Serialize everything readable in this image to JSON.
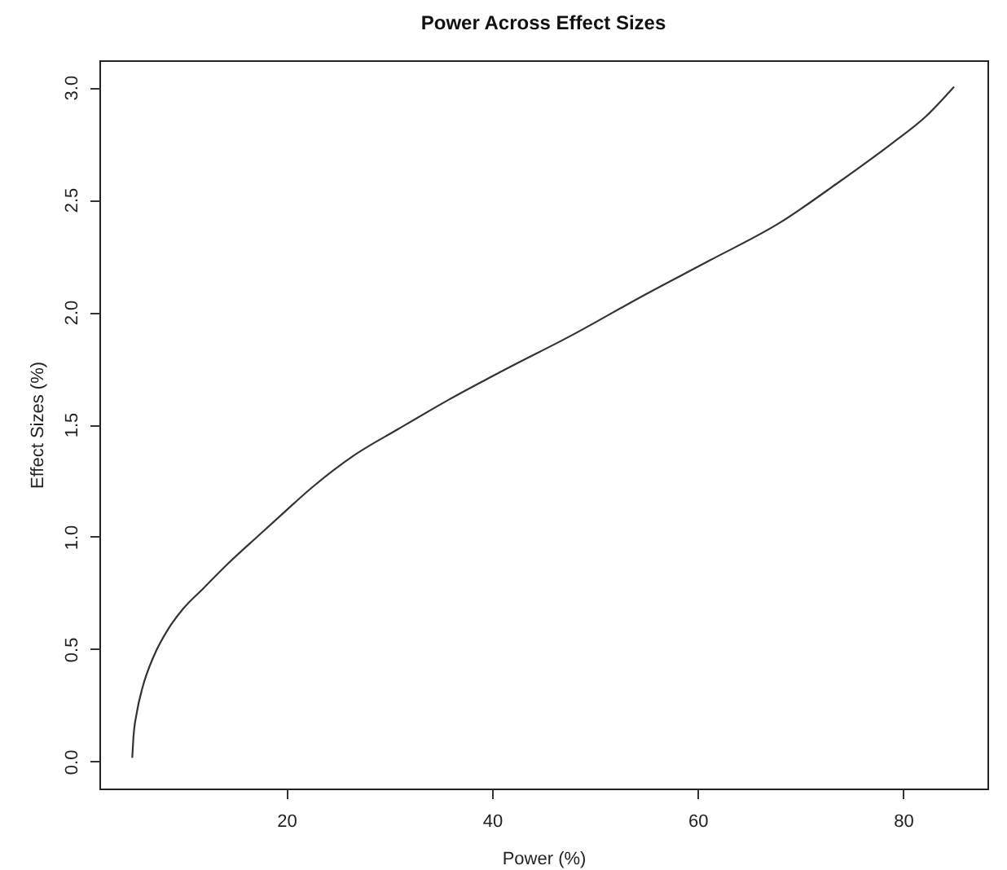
{
  "chart_data": {
    "type": "line",
    "title": "Power Across Effect Sizes",
    "xlabel": "Power (%)",
    "ylabel": "Effect Sizes (%)",
    "x": [
      5.0,
      5.1,
      5.45,
      6.0,
      7.1,
      8.5,
      9.95,
      11.9,
      14.3,
      17.15,
      19.8,
      22.5,
      26.5,
      30.9,
      35.8,
      41.1,
      47.9,
      54.6,
      61.2,
      68.1,
      73.5,
      78.9,
      82.2,
      84.9
    ],
    "series": [
      {
        "color": "#333333",
        "values": [
          0.02,
          0.1,
          0.22,
          0.33,
          0.47,
          0.59,
          0.68,
          0.77,
          0.88,
          1.0,
          1.11,
          1.22,
          1.36,
          1.48,
          1.61,
          1.74,
          1.9,
          2.07,
          2.23,
          2.4,
          2.57,
          2.75,
          2.87,
          3.0
        ]
      }
    ],
    "xlim": [
      1.8,
      88.2
    ],
    "ylim": [
      -0.12,
      3.12
    ],
    "xticks": [
      20,
      40,
      60,
      80
    ],
    "yticks": [
      {
        "value": 0,
        "label": "0.0"
      },
      0.5,
      {
        "value": 1,
        "label": "1.0"
      },
      1.5,
      {
        "value": 2,
        "label": "2.0"
      },
      2.5,
      {
        "value": 3,
        "label": "3.0"
      }
    ],
    "grid": false,
    "line_style": "solid",
    "marker": "none"
  }
}
